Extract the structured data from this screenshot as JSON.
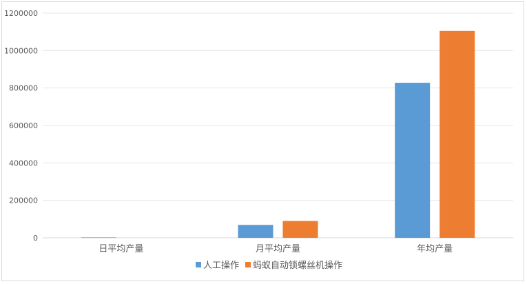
{
  "chart_data": {
    "type": "bar",
    "title": "",
    "xlabel": "",
    "ylabel": "",
    "categories": [
      "日平均产量",
      "月平均产量",
      "年均产量"
    ],
    "series": [
      {
        "name": "人工操作",
        "color": "#5b9bd5",
        "values": [
          2300,
          69000,
          828000
        ]
      },
      {
        "name": "蚂蚁自动锁螺丝机操作",
        "color": "#ed7d31",
        "values": [
          0,
          90000,
          1105000
        ]
      }
    ],
    "ylim": [
      0,
      1200000
    ],
    "yticks": [
      0,
      200000,
      400000,
      600000,
      800000,
      1000000,
      1200000
    ],
    "grid": true,
    "legend": "bottom"
  }
}
